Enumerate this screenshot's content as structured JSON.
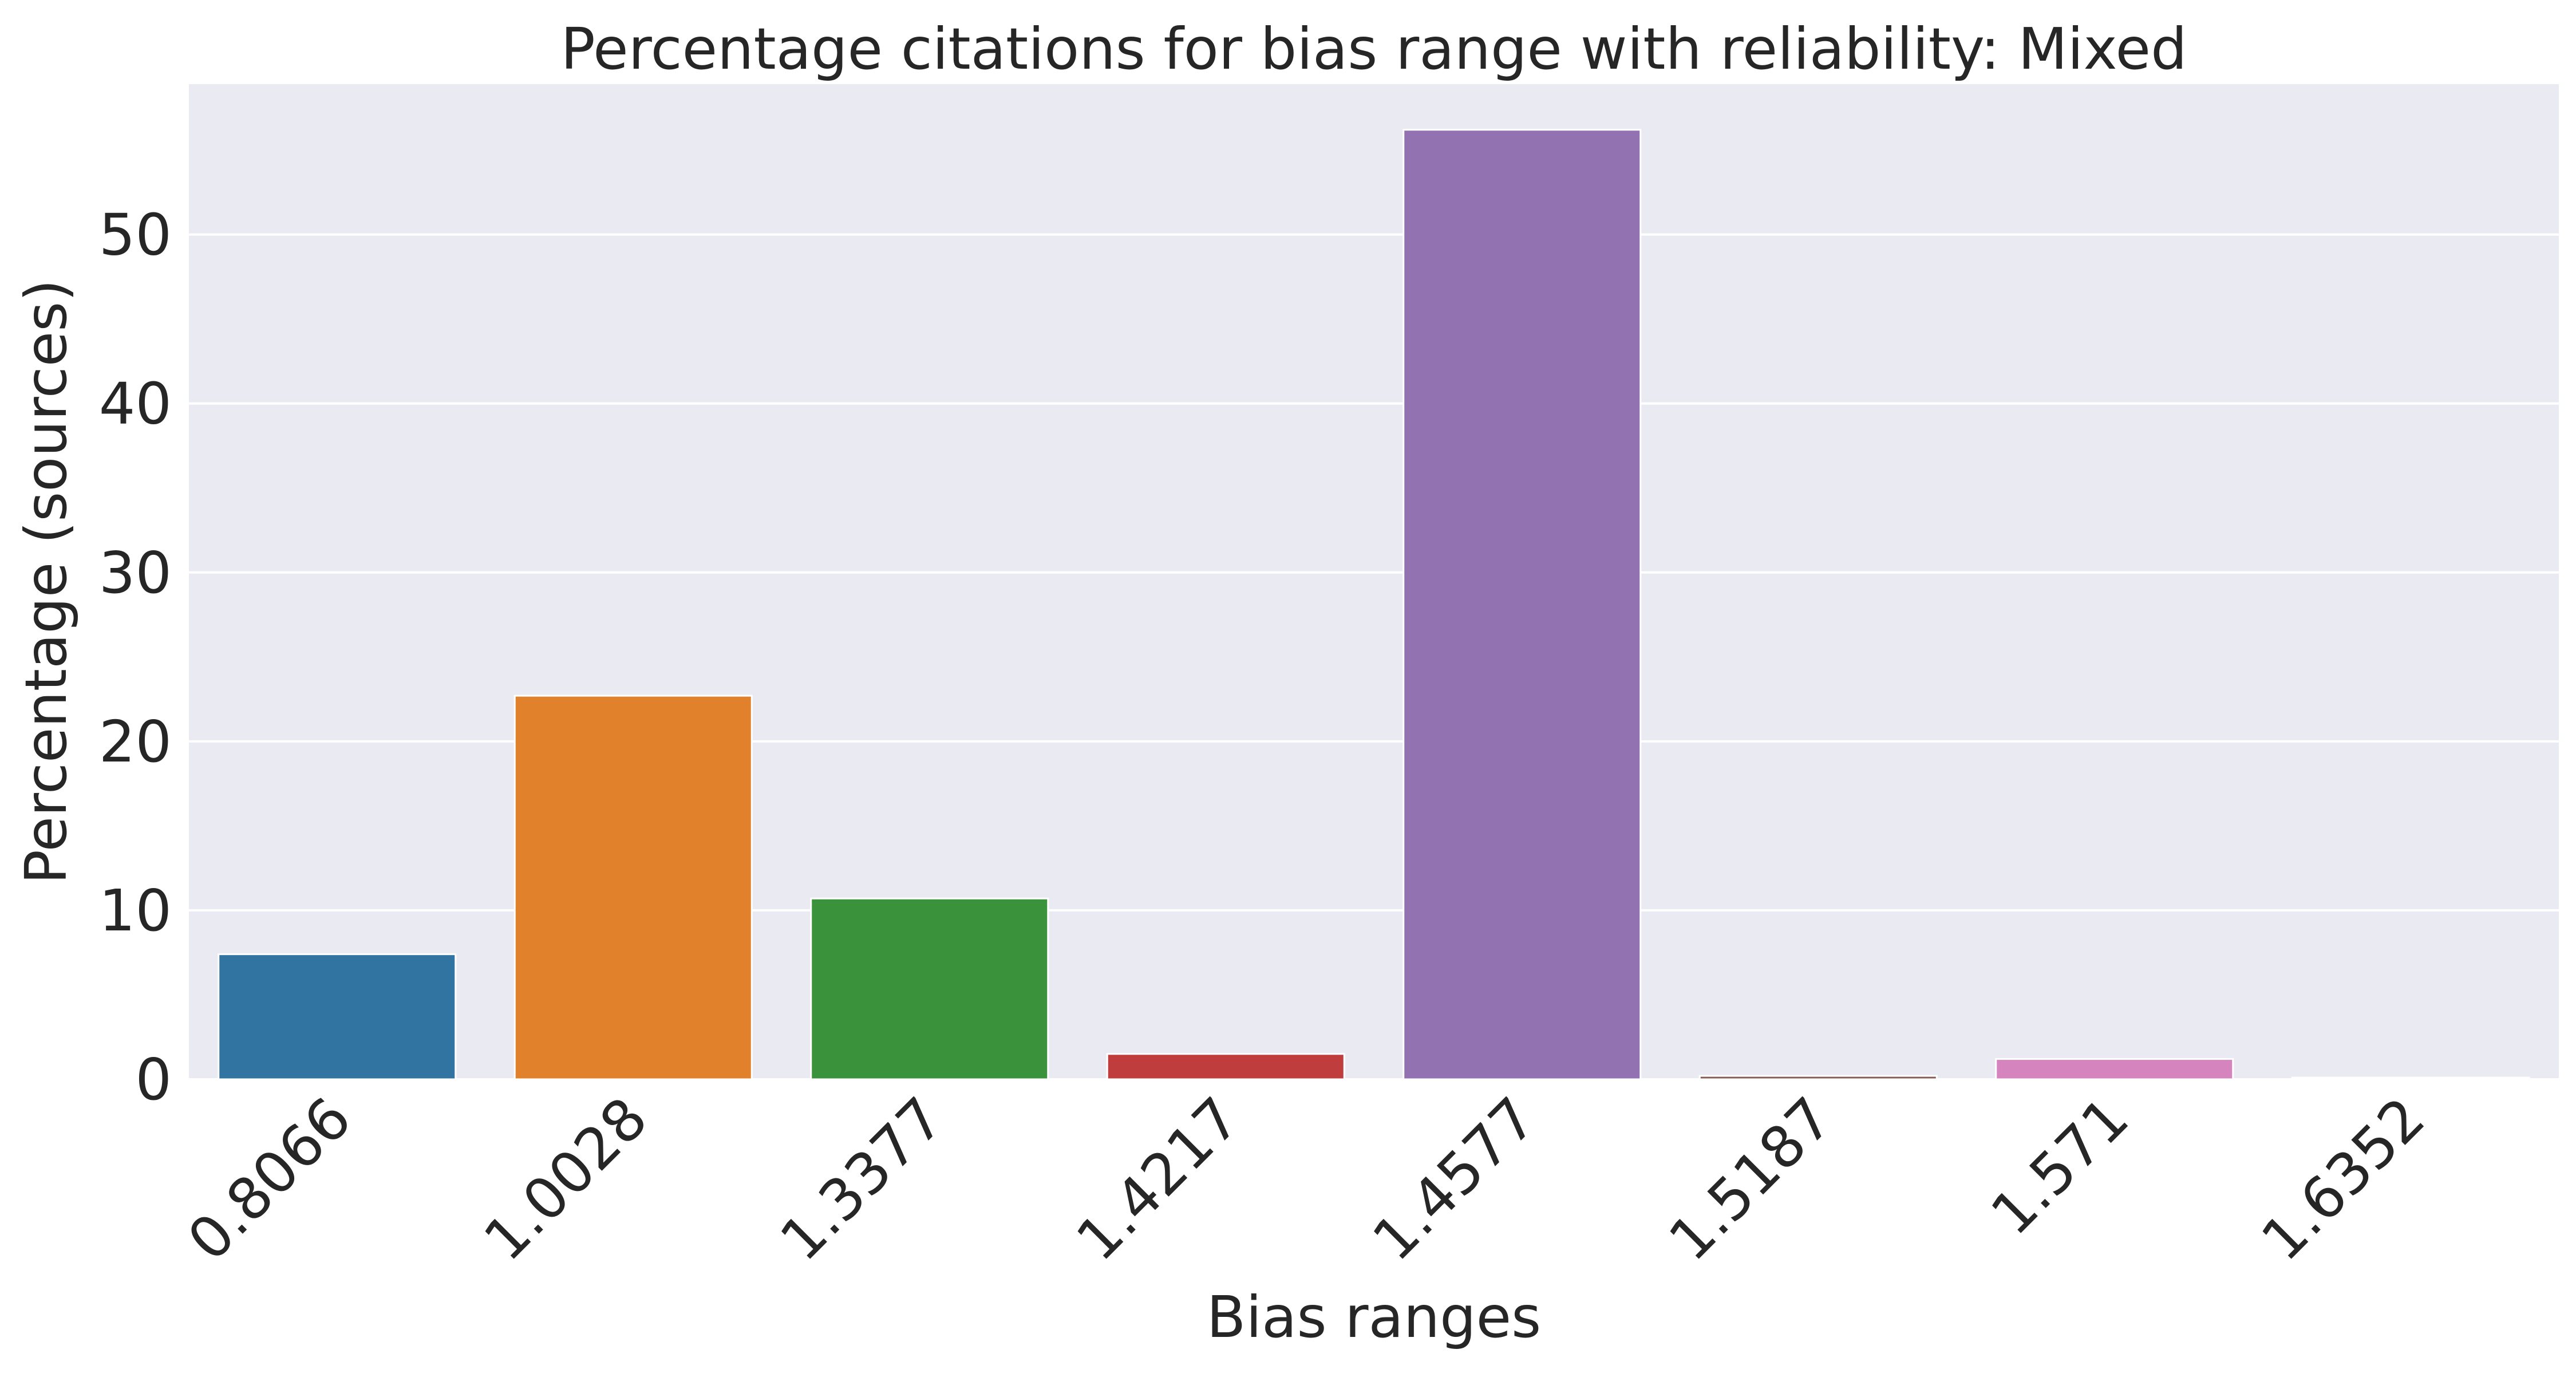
{
  "chart_data": {
    "type": "bar",
    "title": "Percentage citations for bias range with reliability: Mixed",
    "xlabel": "Bias ranges",
    "ylabel": "Percentage (sources)",
    "categories": [
      "0.8066",
      "1.0028",
      "1.3377",
      "1.4217",
      "1.4577",
      "1.5187",
      "1.571",
      "1.6352"
    ],
    "values": [
      7.4,
      22.7,
      10.7,
      1.5,
      56.2,
      0.2,
      1.2,
      0.1
    ],
    "colors": [
      "#3274a1",
      "#e1812c",
      "#3a923a",
      "#c03d3e",
      "#9372b2",
      "#845b53",
      "#d684bd",
      "#7f7f7f"
    ],
    "ylim": [
      0,
      58.9
    ],
    "yticks": [
      0,
      10,
      20,
      30,
      40,
      50
    ],
    "grid": true,
    "background": "#eaeaf2",
    "grid_color": "#ffffff",
    "text_color": "#262626"
  }
}
